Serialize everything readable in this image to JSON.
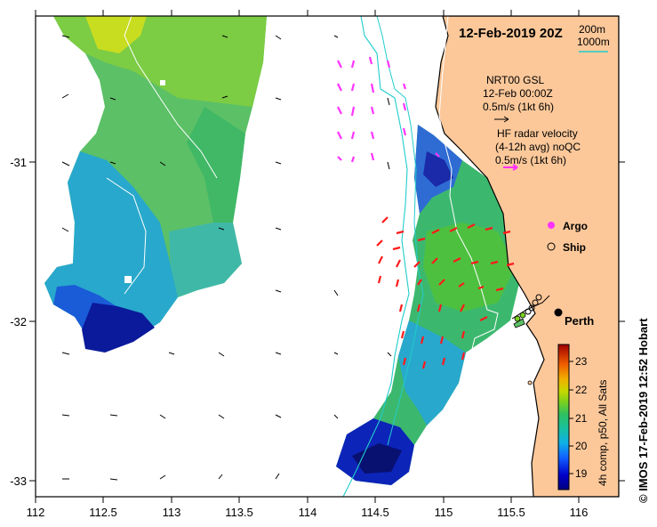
{
  "header": {
    "date_label": "12-Feb-2019 20Z",
    "contour_labels": [
      "200m",
      "1000m"
    ]
  },
  "legend": {
    "nrt": {
      "line1": "NRT00 GSL",
      "line2": "12-Feb 00:00Z",
      "scale": "0.5m/s (1kt 6h)"
    },
    "hf": {
      "line1": "HF radar velocity",
      "line2": "(4-12h avg) noQC",
      "scale": "0.5m/s (1kt 6h)"
    },
    "argo_label": "Argo",
    "ship_label": "Ship"
  },
  "city": {
    "name": "Perth"
  },
  "colorbar": {
    "title": "4h comp, p50, All Sats",
    "ticks": [
      "23",
      "22",
      "21",
      "20",
      "19"
    ],
    "range": [
      18.6,
      23.6
    ]
  },
  "side_label": "© IMOS 17-Feb-2019 12:52 Hobart",
  "axes": {
    "x_ticks": [
      "112",
      "112.5",
      "113",
      "113.5",
      "114",
      "114.5",
      "115",
      "115.5",
      "116"
    ],
    "y_ticks": [
      "-31",
      "-32",
      "-33"
    ],
    "lon_range": [
      112,
      116.3
    ],
    "lat_range": [
      -33.1,
      -30.1
    ]
  },
  "colors": {
    "land": "#fcc89a",
    "coastline": "#000000",
    "contour_200m": "#ffffff",
    "contour_1000m": "#22cccc",
    "argo": "#ff33ff",
    "hf_vectors": "#ff1a1a",
    "model_vectors": "#000000"
  }
}
